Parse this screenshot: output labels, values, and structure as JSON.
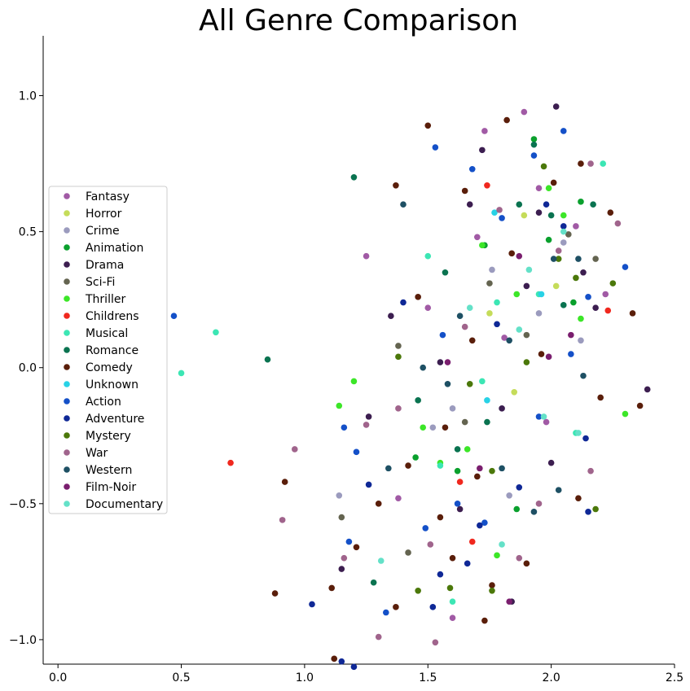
{
  "chart_data": {
    "type": "scatter",
    "title": "All Genre Comparison",
    "xlabel": "",
    "ylabel": "",
    "xlim": [
      -0.06,
      2.5
    ],
    "ylim": [
      -1.09,
      1.22
    ],
    "x_ticks": [
      0.0,
      0.5,
      1.0,
      1.5,
      2.0,
      2.5
    ],
    "x_tick_labels": [
      "0.0",
      "0.5",
      "1.0",
      "1.5",
      "2.0",
      "2.5"
    ],
    "y_ticks": [
      1.0,
      0.5,
      0.0,
      -0.5,
      -1.0
    ],
    "y_tick_labels": [
      "1.0",
      "0.5",
      "0.0",
      "−0.5",
      "−1.0"
    ],
    "grid": false,
    "legend_position": "center-left",
    "series": [
      {
        "name": "Fantasy",
        "color": "#a15aa5",
        "points": [
          [
            1.25,
            0.41
          ],
          [
            1.5,
            0.22
          ],
          [
            1.73,
            0.87
          ],
          [
            1.89,
            0.94
          ],
          [
            1.95,
            0.66
          ],
          [
            2.1,
            0.52
          ],
          [
            2.22,
            0.27
          ],
          [
            1.6,
            -0.92
          ],
          [
            1.38,
            -0.48
          ],
          [
            1.81,
            0.11
          ],
          [
            1.98,
            -0.2
          ],
          [
            1.7,
            0.48
          ]
        ]
      },
      {
        "name": "Horror",
        "color": "#c5dc5a",
        "points": [
          [
            1.89,
            0.56
          ],
          [
            1.85,
            -0.09
          ],
          [
            2.02,
            0.3
          ],
          [
            1.75,
            0.2
          ]
        ]
      },
      {
        "name": "Crime",
        "color": "#9b9bbe",
        "points": [
          [
            1.14,
            -0.47
          ],
          [
            1.6,
            -0.15
          ],
          [
            1.76,
            0.36
          ],
          [
            1.95,
            0.2
          ],
          [
            2.05,
            0.46
          ],
          [
            1.83,
            -0.47
          ],
          [
            1.52,
            -0.22
          ],
          [
            2.12,
            0.1
          ]
        ]
      },
      {
        "name": "Animation",
        "color": "#0aa02d",
        "points": [
          [
            1.73,
            0.45
          ],
          [
            1.99,
            0.47
          ],
          [
            2.09,
            0.24
          ],
          [
            1.86,
            -0.52
          ],
          [
            1.93,
            0.84
          ],
          [
            1.62,
            -0.38
          ],
          [
            2.12,
            0.61
          ],
          [
            1.45,
            -0.33
          ]
        ]
      },
      {
        "name": "Drama",
        "color": "#3c1e50",
        "points": [
          [
            1.35,
            0.19
          ],
          [
            1.72,
            0.8
          ],
          [
            1.95,
            0.57
          ],
          [
            2.02,
            0.96
          ],
          [
            2.13,
            0.35
          ],
          [
            2.39,
            -0.08
          ],
          [
            1.8,
            -0.15
          ],
          [
            1.63,
            -0.52
          ],
          [
            1.55,
            0.02
          ],
          [
            2.0,
            -0.35
          ],
          [
            1.26,
            -0.18
          ],
          [
            1.15,
            -0.74
          ],
          [
            1.84,
            -0.86
          ],
          [
            2.18,
            0.22
          ],
          [
            1.67,
            0.6
          ],
          [
            1.9,
            0.3
          ]
        ]
      },
      {
        "name": "Sci-Fi",
        "color": "#646450",
        "points": [
          [
            1.38,
            0.08
          ],
          [
            1.75,
            0.31
          ],
          [
            2.07,
            0.49
          ],
          [
            1.15,
            -0.55
          ],
          [
            1.65,
            -0.2
          ],
          [
            1.9,
            0.12
          ],
          [
            2.18,
            0.4
          ],
          [
            1.42,
            -0.68
          ]
        ]
      },
      {
        "name": "Thriller",
        "color": "#3ce628",
        "points": [
          [
            1.14,
            -0.14
          ],
          [
            1.2,
            -0.05
          ],
          [
            1.72,
            0.45
          ],
          [
            1.99,
            0.66
          ],
          [
            2.12,
            0.18
          ],
          [
            2.3,
            -0.17
          ],
          [
            1.78,
            -0.69
          ],
          [
            1.66,
            -0.3
          ],
          [
            1.48,
            -0.22
          ],
          [
            1.86,
            0.27
          ],
          [
            2.05,
            0.56
          ],
          [
            1.55,
            -0.35
          ]
        ]
      },
      {
        "name": "Childrens",
        "color": "#f0281e",
        "points": [
          [
            0.7,
            -0.35
          ],
          [
            1.74,
            0.67
          ],
          [
            2.23,
            0.21
          ],
          [
            1.63,
            -0.42
          ],
          [
            1.68,
            -0.64
          ]
        ]
      },
      {
        "name": "Musical",
        "color": "#3ce6b4",
        "points": [
          [
            0.64,
            0.13
          ],
          [
            0.5,
            -0.02
          ],
          [
            1.5,
            0.41
          ],
          [
            1.78,
            0.24
          ],
          [
            2.21,
            0.75
          ],
          [
            1.6,
            -0.86
          ],
          [
            1.72,
            -0.05
          ],
          [
            1.95,
            0.27
          ],
          [
            2.1,
            -0.24
          ],
          [
            1.55,
            -0.36
          ]
        ]
      },
      {
        "name": "Romance",
        "color": "#0a7350",
        "points": [
          [
            0.85,
            0.03
          ],
          [
            1.2,
            0.7
          ],
          [
            1.57,
            0.35
          ],
          [
            1.87,
            0.6
          ],
          [
            2.05,
            0.23
          ],
          [
            1.28,
            -0.79
          ],
          [
            1.62,
            -0.3
          ],
          [
            1.93,
            0.82
          ],
          [
            1.46,
            -0.12
          ],
          [
            2.0,
            0.56
          ],
          [
            1.74,
            -0.2
          ],
          [
            2.17,
            0.6
          ]
        ]
      },
      {
        "name": "Comedy",
        "color": "#5a1e0a",
        "points": [
          [
            0.88,
            -0.83
          ],
          [
            0.92,
            -0.42
          ],
          [
            1.11,
            -0.81
          ],
          [
            1.12,
            -1.07
          ],
          [
            1.37,
            0.67
          ],
          [
            1.5,
            0.89
          ],
          [
            1.65,
            0.65
          ],
          [
            1.82,
            0.91
          ],
          [
            2.01,
            0.68
          ],
          [
            2.12,
            0.75
          ],
          [
            2.33,
            0.2
          ],
          [
            2.36,
            -0.14
          ],
          [
            2.2,
            -0.11
          ],
          [
            1.76,
            -0.8
          ],
          [
            1.73,
            -0.93
          ],
          [
            1.6,
            -0.7
          ],
          [
            1.37,
            -0.88
          ],
          [
            1.21,
            -0.66
          ],
          [
            1.42,
            -0.36
          ],
          [
            1.57,
            -0.22
          ],
          [
            1.68,
            0.1
          ],
          [
            1.84,
            0.42
          ],
          [
            1.96,
            0.05
          ],
          [
            2.11,
            -0.48
          ],
          [
            1.9,
            -0.72
          ],
          [
            1.46,
            0.26
          ],
          [
            1.7,
            -0.4
          ],
          [
            1.55,
            -0.55
          ],
          [
            2.24,
            0.57
          ],
          [
            1.3,
            -0.5
          ]
        ]
      },
      {
        "name": "Unknown",
        "color": "#28d2e6",
        "points": [
          [
            1.77,
            0.57
          ],
          [
            1.96,
            0.27
          ],
          [
            1.74,
            -0.12
          ]
        ]
      },
      {
        "name": "Action",
        "color": "#1450c8",
        "points": [
          [
            0.47,
            0.19
          ],
          [
            1.16,
            -0.22
          ],
          [
            1.21,
            -0.31
          ],
          [
            1.53,
            0.81
          ],
          [
            1.68,
            0.73
          ],
          [
            1.93,
            0.78
          ],
          [
            2.05,
            0.87
          ],
          [
            2.15,
            0.26
          ],
          [
            2.3,
            0.37
          ],
          [
            1.95,
            -0.18
          ],
          [
            1.73,
            -0.57
          ],
          [
            1.33,
            -0.9
          ],
          [
            1.49,
            -0.59
          ],
          [
            1.18,
            -0.64
          ],
          [
            1.62,
            -0.5
          ],
          [
            2.08,
            0.05
          ],
          [
            1.56,
            0.12
          ],
          [
            1.8,
            0.55
          ]
        ]
      },
      {
        "name": "Adventure",
        "color": "#0f2896",
        "points": [
          [
            1.03,
            -0.87
          ],
          [
            1.15,
            -1.08
          ],
          [
            1.2,
            -1.1
          ],
          [
            1.52,
            -0.88
          ],
          [
            1.55,
            -0.76
          ],
          [
            1.4,
            0.24
          ],
          [
            1.78,
            0.16
          ],
          [
            1.98,
            0.6
          ],
          [
            2.14,
            -0.26
          ],
          [
            2.15,
            -0.53
          ],
          [
            1.71,
            -0.58
          ],
          [
            1.26,
            -0.43
          ],
          [
            1.87,
            -0.44
          ],
          [
            2.05,
            0.52
          ],
          [
            1.66,
            -0.72
          ]
        ]
      },
      {
        "name": "Mystery",
        "color": "#4b780a",
        "points": [
          [
            1.97,
            0.74
          ],
          [
            2.03,
            0.4
          ],
          [
            2.25,
            0.31
          ],
          [
            1.76,
            -0.38
          ],
          [
            1.59,
            -0.81
          ],
          [
            1.76,
            -0.82
          ],
          [
            2.18,
            -0.52
          ],
          [
            1.9,
            0.02
          ],
          [
            1.38,
            0.04
          ],
          [
            1.46,
            -0.82
          ],
          [
            2.1,
            0.33
          ],
          [
            1.67,
            -0.06
          ]
        ]
      },
      {
        "name": "War",
        "color": "#a0648c",
        "points": [
          [
            0.96,
            -0.3
          ],
          [
            0.91,
            -0.56
          ],
          [
            1.16,
            -0.7
          ],
          [
            1.3,
            -0.99
          ],
          [
            1.53,
            -1.01
          ],
          [
            2.16,
            0.75
          ],
          [
            2.27,
            0.53
          ],
          [
            2.16,
            -0.38
          ],
          [
            1.87,
            -0.7
          ],
          [
            1.51,
            -0.65
          ],
          [
            1.38,
            -0.15
          ],
          [
            1.79,
            0.58
          ],
          [
            1.95,
            -0.5
          ],
          [
            2.03,
            0.43
          ],
          [
            1.65,
            0.15
          ],
          [
            1.25,
            -0.21
          ]
        ]
      },
      {
        "name": "Western",
        "color": "#1e5064",
        "points": [
          [
            1.4,
            0.6
          ],
          [
            1.63,
            0.19
          ],
          [
            2.01,
            0.4
          ],
          [
            2.11,
            0.4
          ],
          [
            2.03,
            -0.45
          ],
          [
            1.34,
            -0.37
          ],
          [
            1.8,
            -0.37
          ],
          [
            2.13,
            -0.03
          ],
          [
            1.58,
            -0.06
          ],
          [
            1.83,
            0.1
          ],
          [
            1.93,
            -0.53
          ],
          [
            1.48,
            0.0
          ]
        ]
      },
      {
        "name": "Film-Noir",
        "color": "#7a1e6e",
        "points": [
          [
            1.99,
            0.04
          ],
          [
            1.87,
            0.41
          ],
          [
            2.08,
            0.12
          ],
          [
            1.58,
            0.02
          ],
          [
            1.83,
            -0.86
          ],
          [
            1.71,
            -0.37
          ]
        ]
      },
      {
        "name": "Documentary",
        "color": "#64e1c8",
        "points": [
          [
            1.87,
            0.14
          ],
          [
            1.91,
            0.36
          ],
          [
            2.05,
            0.5
          ],
          [
            1.67,
            0.22
          ],
          [
            1.8,
            -0.65
          ],
          [
            2.11,
            -0.24
          ],
          [
            1.31,
            -0.71
          ],
          [
            1.97,
            -0.18
          ]
        ]
      }
    ]
  }
}
